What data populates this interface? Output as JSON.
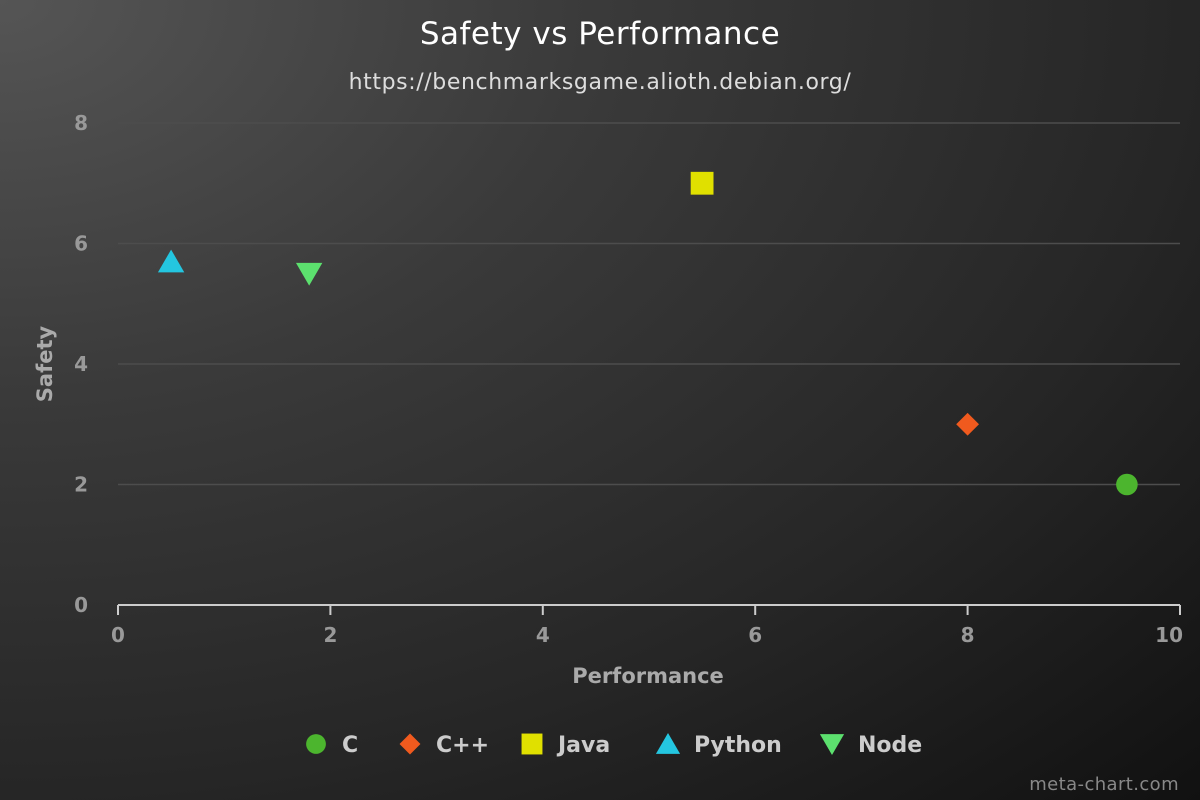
{
  "chart_data": {
    "type": "scatter",
    "title": "Safety vs Performance",
    "subtitle": "https://benchmarksgame.alioth.debian.org/",
    "xlabel": "Performance",
    "ylabel": "Safety",
    "xlim": [
      0,
      10
    ],
    "ylim": [
      0,
      8
    ],
    "x_ticks": [
      "0",
      "2",
      "4",
      "6",
      "8",
      "10"
    ],
    "y_ticks": [
      "0",
      "2",
      "4",
      "6",
      "8"
    ],
    "grid": true,
    "legend_position": "bottom",
    "series": [
      {
        "name": "C",
        "marker": "circle",
        "color": "#4cb52e",
        "points": [
          {
            "x": 9.5,
            "y": 2
          }
        ]
      },
      {
        "name": "C++",
        "marker": "diamond",
        "color": "#f05a1e",
        "points": [
          {
            "x": 8,
            "y": 3
          }
        ]
      },
      {
        "name": "Java",
        "marker": "square",
        "color": "#e0e000",
        "points": [
          {
            "x": 5.5,
            "y": 7
          }
        ]
      },
      {
        "name": "Python",
        "marker": "triangle-up",
        "color": "#24c6e0",
        "points": [
          {
            "x": 0.5,
            "y": 5.7
          }
        ]
      },
      {
        "name": "Node",
        "marker": "triangle-down",
        "color": "#5ce06e",
        "points": [
          {
            "x": 1.8,
            "y": 5.5
          }
        ]
      }
    ]
  },
  "credit": "meta-chart.com"
}
